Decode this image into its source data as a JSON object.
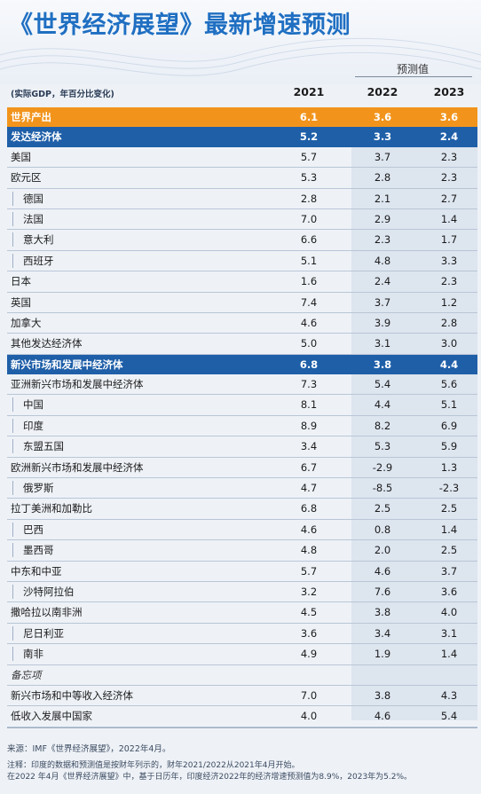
{
  "title": "《世界经济展望》最新增速预测",
  "forecast_label": "预测值",
  "unit_label": "(实际GDP，年百分比变化)",
  "years": [
    "2021",
    "2022",
    "2023"
  ],
  "rows": [
    {
      "label": "世界产出",
      "v": [
        "6.1",
        "3.6",
        "3.6"
      ],
      "style": "orange"
    },
    {
      "label": "发达经济体",
      "v": [
        "5.2",
        "3.3",
        "2.4"
      ],
      "style": "blue"
    },
    {
      "label": "美国",
      "v": [
        "5.7",
        "3.7",
        "2.3"
      ],
      "style": "plain"
    },
    {
      "label": "欧元区",
      "v": [
        "5.3",
        "2.8",
        "2.3"
      ],
      "style": "plain"
    },
    {
      "label": "德国",
      "v": [
        "2.8",
        "2.1",
        "2.7"
      ],
      "style": "ind"
    },
    {
      "label": "法国",
      "v": [
        "7.0",
        "2.9",
        "1.4"
      ],
      "style": "ind"
    },
    {
      "label": "意大利",
      "v": [
        "6.6",
        "2.3",
        "1.7"
      ],
      "style": "ind"
    },
    {
      "label": "西班牙",
      "v": [
        "5.1",
        "4.8",
        "3.3"
      ],
      "style": "ind"
    },
    {
      "label": "日本",
      "v": [
        "1.6",
        "2.4",
        "2.3"
      ],
      "style": "plain"
    },
    {
      "label": "英国",
      "v": [
        "7.4",
        "3.7",
        "1.2"
      ],
      "style": "plain"
    },
    {
      "label": "加拿大",
      "v": [
        "4.6",
        "3.9",
        "2.8"
      ],
      "style": "plain"
    },
    {
      "label": "其他发达经济体",
      "v": [
        "5.0",
        "3.1",
        "3.0"
      ],
      "style": "plain"
    },
    {
      "label": "新兴市场和发展中经济体",
      "v": [
        "6.8",
        "3.8",
        "4.4"
      ],
      "style": "blue"
    },
    {
      "label": "亚洲新兴市场和发展中经济体",
      "v": [
        "7.3",
        "5.4",
        "5.6"
      ],
      "style": "plain"
    },
    {
      "label": "中国",
      "v": [
        "8.1",
        "4.4",
        "5.1"
      ],
      "style": "ind"
    },
    {
      "label": "印度",
      "v": [
        "8.9",
        "8.2",
        "6.9"
      ],
      "style": "ind"
    },
    {
      "label": "东盟五国",
      "v": [
        "3.4",
        "5.3",
        "5.9"
      ],
      "style": "ind"
    },
    {
      "label": "欧洲新兴市场和发展中经济体",
      "v": [
        "6.7",
        "-2.9",
        "1.3"
      ],
      "style": "plain"
    },
    {
      "label": "俄罗斯",
      "v": [
        "4.7",
        "-8.5",
        "-2.3"
      ],
      "style": "ind"
    },
    {
      "label": "拉丁美洲和加勒比",
      "v": [
        "6.8",
        "2.5",
        "2.5"
      ],
      "style": "plain"
    },
    {
      "label": "巴西",
      "v": [
        "4.6",
        "0.8",
        "1.4"
      ],
      "style": "ind"
    },
    {
      "label": "墨西哥",
      "v": [
        "4.8",
        "2.0",
        "2.5"
      ],
      "style": "ind"
    },
    {
      "label": "中东和中亚",
      "v": [
        "5.7",
        "4.6",
        "3.7"
      ],
      "style": "plain"
    },
    {
      "label": "沙特阿拉伯",
      "v": [
        "3.2",
        "7.6",
        "3.6"
      ],
      "style": "ind"
    },
    {
      "label": "撒哈拉以南非洲",
      "v": [
        "4.5",
        "3.8",
        "4.0"
      ],
      "style": "plain"
    },
    {
      "label": "尼日利亚",
      "v": [
        "3.6",
        "3.4",
        "3.1"
      ],
      "style": "ind"
    },
    {
      "label": "南非",
      "v": [
        "4.9",
        "1.9",
        "1.4"
      ],
      "style": "ind"
    },
    {
      "label": "备忘项",
      "v": [
        "",
        "",
        ""
      ],
      "style": "memo"
    },
    {
      "label": "新兴市场和中等收入经济体",
      "v": [
        "7.0",
        "3.8",
        "4.3"
      ],
      "style": "plain"
    },
    {
      "label": "低收入发展中国家",
      "v": [
        "4.0",
        "4.6",
        "5.4"
      ],
      "style": "plain"
    }
  ],
  "source": "来源：IMF《世界经济展望》，2022年4月。",
  "note_line1": "注释：印度的数据和预测值是按财年列示的，财年2021/2022从2021年4月开始。",
  "note_line2": "在2022 年4月《世界经济展望》中，基于日历年，印度经济2022年的经济增速预测值为8.9%，2023年为5.2%。",
  "colors": {
    "title": "#1f6fc2",
    "world_row": "#f2941c",
    "group_row": "#1f5fa8",
    "forecast_bg": "#dde5ef"
  }
}
